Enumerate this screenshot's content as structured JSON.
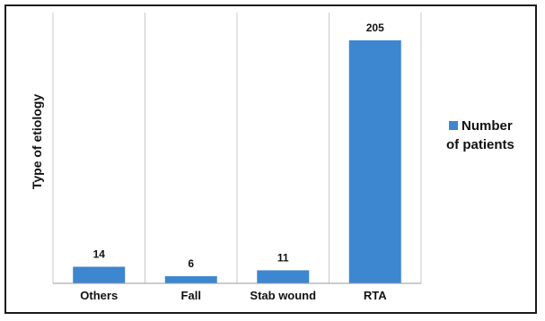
{
  "chart_data": {
    "type": "bar",
    "categories": [
      "Others",
      "Fall",
      "Stab wound",
      "RTA"
    ],
    "series": [
      {
        "name": "Number of patients",
        "values": [
          14,
          6,
          11,
          205
        ]
      }
    ],
    "data_labels": [
      "14",
      "6",
      "11",
      "205"
    ],
    "ylabel": "Type of etiology",
    "xlabel": "",
    "ylim": [
      0,
      205
    ],
    "legend": {
      "position": "right",
      "lines": [
        "Number",
        "of patients"
      ]
    },
    "colors": {
      "bar": "#3d86d0",
      "grid": "#c8c8c8",
      "axis": "#999999"
    },
    "grid": "vertical separators"
  }
}
